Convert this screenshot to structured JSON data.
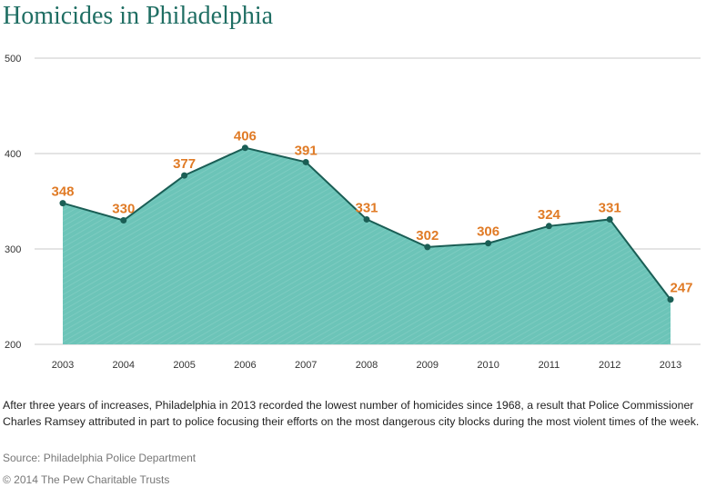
{
  "chart_data": {
    "type": "area",
    "title": "Homicides in Philadelphia",
    "categories": [
      "2003",
      "2004",
      "2005",
      "2006",
      "2007",
      "2008",
      "2009",
      "2010",
      "2011",
      "2012",
      "2013"
    ],
    "values": [
      348,
      330,
      377,
      406,
      391,
      331,
      302,
      306,
      324,
      331,
      247
    ],
    "ylim": [
      200,
      500
    ],
    "yticks": [
      200,
      300,
      400,
      500
    ],
    "grid": true,
    "colors": {
      "fill": "#6cc4b8",
      "line": "#1a5e55",
      "label": "#e07b26",
      "title": "#1f6e63"
    }
  },
  "caption": "After three years of increases, Philadelphia in 2013 recorded the lowest number of homicides since 1968, a result that Police Commissioner Charles Ramsey attributed in part to police focusing their efforts on the most dangerous city blocks during the most violent times of the week.",
  "source": "Source: Philadelphia Police Department",
  "copyright": "© 2014 The Pew Charitable Trusts"
}
